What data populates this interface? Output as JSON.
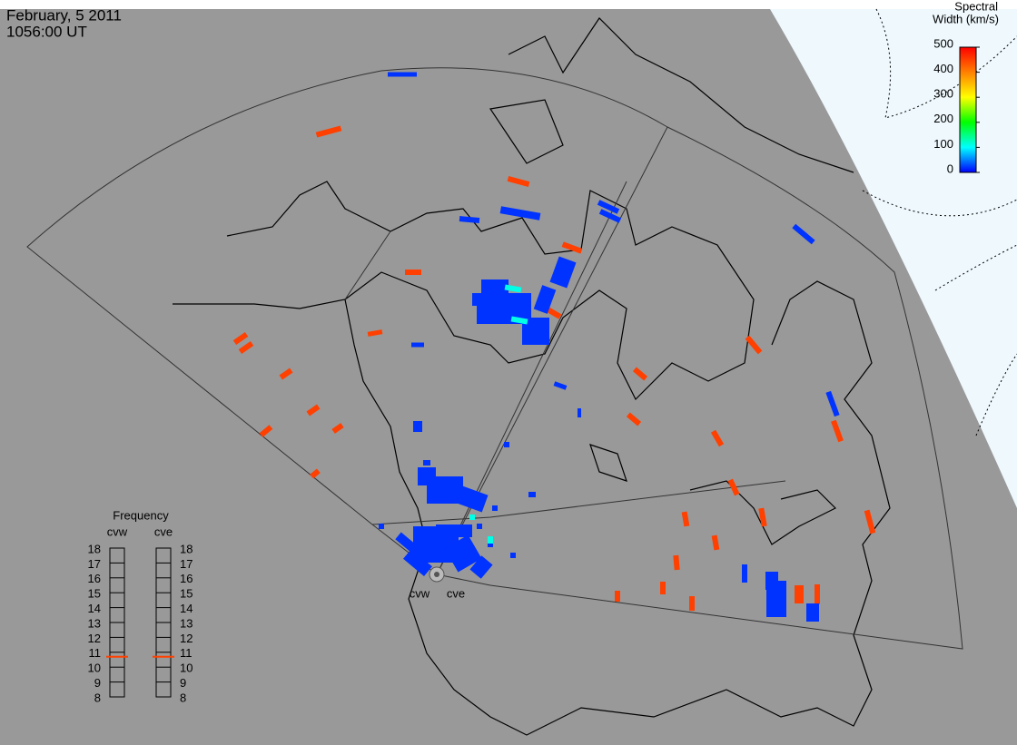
{
  "header": {
    "date": "February, 5 2011",
    "time": "1056:00 UT"
  },
  "colorbar": {
    "title": [
      "Spectral",
      "Width (km/s)"
    ],
    "lim": [
      0,
      500
    ],
    "ticks": [
      0,
      100,
      200,
      300,
      400,
      500
    ]
  },
  "frequency": {
    "title": "Frequency",
    "lim": [
      8,
      18
    ],
    "ticks": [
      8,
      9,
      10,
      11,
      12,
      13,
      14,
      15,
      16,
      17,
      18
    ],
    "radars": [
      {
        "name": "cvw",
        "value": 10.7
      },
      {
        "name": "cve",
        "value": 10.7
      }
    ]
  },
  "spectral_width": [
    450,
    450,
    450,
    450,
    450,
    450,
    450,
    450,
    450,
    450,
    450,
    450,
    450,
    450,
    450,
    450,
    450,
    450,
    450,
    450,
    450,
    450,
    450,
    450,
    450,
    450,
    450,
    450,
    450,
    450,
    20,
    20,
    20,
    20,
    20,
    20,
    20,
    20,
    20,
    20,
    20,
    20,
    20,
    20,
    20,
    20,
    20,
    20,
    20,
    20,
    20,
    20,
    20,
    20,
    20,
    20,
    20,
    20,
    20,
    20,
    20,
    20,
    20,
    20,
    20,
    20,
    20,
    20,
    110,
    110,
    110,
    110
  ]
}
